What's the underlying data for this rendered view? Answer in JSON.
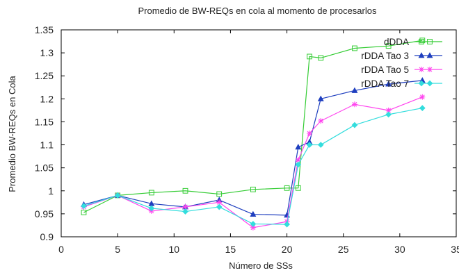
{
  "chart_data": {
    "type": "line",
    "title": "Promedio de BW-REQs en cola al momento de procesarlos",
    "xlabel": "Número de SSs",
    "ylabel": "Promedio BW-REQs en Cola",
    "xlim": [
      0,
      35
    ],
    "ylim": [
      0.9,
      1.35
    ],
    "x_ticks": [
      "0",
      "5",
      "10",
      "15",
      "20",
      "25",
      "30",
      "35"
    ],
    "y_ticks": [
      "0.9",
      "0.95",
      "1",
      "1.05",
      "1.1",
      "1.15",
      "1.2",
      "1.25",
      "1.3",
      "1.35"
    ],
    "grid": false,
    "legend_position": "top-right",
    "series": [
      {
        "name": "dDDA",
        "color": "#33cc33",
        "marker": "square",
        "x": [
          2,
          5,
          8,
          11,
          14,
          17,
          20,
          21,
          22,
          23,
          26,
          29,
          32
        ],
        "y": [
          0.953,
          0.99,
          0.996,
          1.0,
          0.993,
          1.003,
          1.006,
          1.006,
          1.292,
          1.289,
          1.31,
          1.315,
          1.327
        ]
      },
      {
        "name": "rDDA Tao 3",
        "color": "#1f3fbf",
        "marker": "triangle",
        "x": [
          2,
          5,
          8,
          11,
          14,
          17,
          20,
          21,
          22,
          23,
          26,
          29,
          32
        ],
        "y": [
          0.97,
          0.99,
          0.972,
          0.965,
          0.98,
          0.949,
          0.947,
          1.095,
          1.106,
          1.2,
          1.218,
          1.232,
          1.24
        ]
      },
      {
        "name": "rDDA Tao 5",
        "color": "#ff44ee",
        "marker": "star",
        "x": [
          2,
          5,
          8,
          11,
          14,
          17,
          20,
          21,
          22,
          23,
          26,
          29,
          32
        ],
        "y": [
          0.965,
          0.99,
          0.956,
          0.965,
          0.975,
          0.92,
          0.933,
          1.067,
          1.125,
          1.152,
          1.188,
          1.175,
          1.204
        ]
      },
      {
        "name": "rDDA Tao 7",
        "color": "#33dddd",
        "marker": "diamond",
        "x": [
          2,
          5,
          8,
          11,
          14,
          17,
          20,
          21,
          22,
          23,
          26,
          29,
          32
        ],
        "y": [
          0.967,
          0.99,
          0.962,
          0.955,
          0.965,
          0.928,
          0.927,
          1.057,
          1.1,
          1.1,
          1.143,
          1.166,
          1.18
        ]
      }
    ]
  }
}
